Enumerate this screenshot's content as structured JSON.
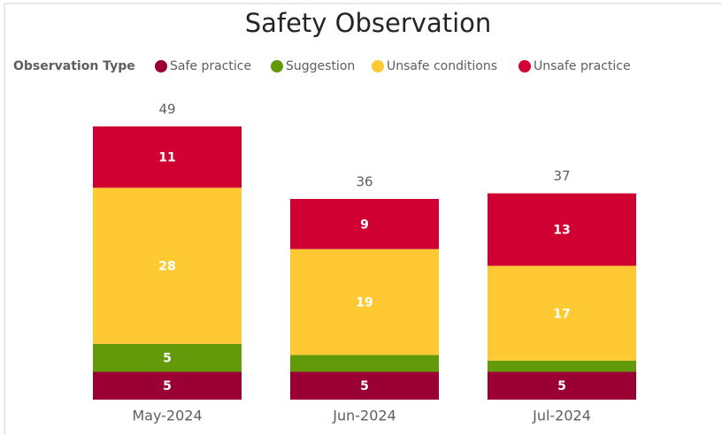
{
  "chart_data": {
    "type": "stacked_bar",
    "title": "Safety Observation",
    "legend_title": "Observation Type",
    "categories": [
      "May-2024",
      "Jun-2024",
      "Jul-2024"
    ],
    "series": [
      {
        "name": "Safe practice",
        "color": "#9b0034",
        "values": [
          5,
          5,
          5
        ]
      },
      {
        "name": "Suggestion",
        "color": "#629a0a",
        "values": [
          5,
          3,
          2
        ]
      },
      {
        "name": "Unsafe conditions",
        "color": "#fec932",
        "values": [
          28,
          19,
          17
        ]
      },
      {
        "name": "Unsafe practice",
        "color": "#d10032",
        "values": [
          11,
          9,
          13
        ]
      }
    ],
    "totals": [
      49,
      36,
      37
    ]
  }
}
